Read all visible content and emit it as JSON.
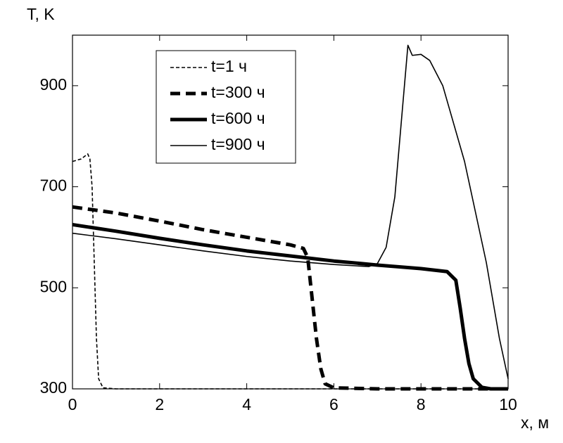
{
  "chart_data": {
    "type": "line",
    "x_label": "x, м",
    "y_label": "T, K",
    "xlim": [
      0,
      10
    ],
    "ylim": [
      300,
      1000
    ],
    "xticks": [
      0,
      2,
      4,
      6,
      8,
      10
    ],
    "yticks": [
      300,
      500,
      700,
      900
    ],
    "legend": "upper-left",
    "series": [
      {
        "name": "t=1 ч",
        "color": "#000000",
        "line_style": "dashed",
        "line_width": "thin",
        "x": [
          0,
          0.2,
          0.35,
          0.4,
          0.45,
          0.5,
          0.55,
          0.6,
          0.7,
          1,
          10
        ],
        "values": [
          750,
          755,
          765,
          755,
          700,
          550,
          400,
          320,
          302,
          300,
          300
        ]
      },
      {
        "name": "t=300 ч",
        "color": "#000000",
        "line_style": "dashed",
        "line_width": "thick",
        "x": [
          0,
          1,
          2,
          3,
          4,
          5,
          5.3,
          5.4,
          5.5,
          5.6,
          5.7,
          5.8,
          6,
          7,
          10
        ],
        "values": [
          660,
          648,
          632,
          615,
          600,
          585,
          578,
          560,
          480,
          400,
          340,
          310,
          302,
          300,
          300
        ]
      },
      {
        "name": "t=600 ч",
        "color": "#000000",
        "line_style": "solid",
        "line_width": "thick",
        "x": [
          0,
          1,
          2,
          3,
          4,
          5,
          6,
          7,
          8,
          8.6,
          8.8,
          8.9,
          9,
          9.1,
          9.2,
          9.4,
          9.6,
          10
        ],
        "values": [
          625,
          612,
          598,
          585,
          573,
          563,
          553,
          545,
          538,
          532,
          515,
          460,
          400,
          350,
          320,
          303,
          300,
          300
        ]
      },
      {
        "name": "t=900 ч",
        "color": "#000000",
        "line_style": "solid",
        "line_width": "thin",
        "x": [
          0,
          1,
          2,
          3,
          4,
          5,
          6,
          6.8,
          7,
          7.2,
          7.4,
          7.6,
          7.7,
          7.8,
          8,
          8.2,
          8.5,
          9,
          9.5,
          9.8,
          10
        ],
        "values": [
          608,
          597,
          585,
          573,
          562,
          553,
          546,
          542,
          548,
          580,
          680,
          880,
          980,
          960,
          962,
          950,
          900,
          750,
          550,
          400,
          320
        ]
      }
    ]
  }
}
